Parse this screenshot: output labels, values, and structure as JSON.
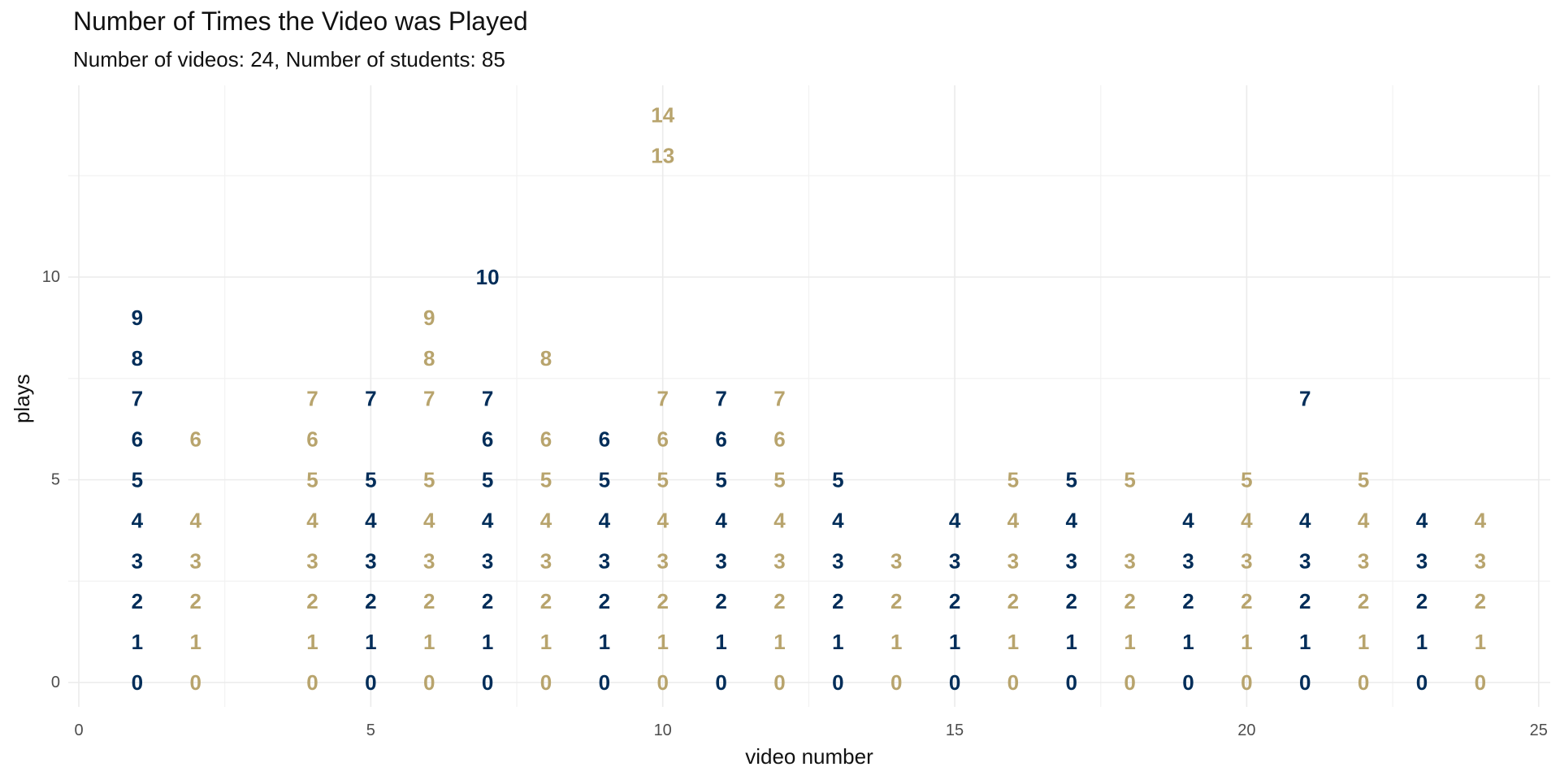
{
  "chart_data": {
    "type": "scatter",
    "title": "Number of Times the Video was Played",
    "subtitle": "Number of videos: 24, Number of students: 85",
    "xlabel": "video number",
    "ylabel": "plays",
    "xlim": [
      0,
      25
    ],
    "ylim": [
      0,
      14
    ],
    "x_ticks": [
      0,
      5,
      10,
      15,
      20,
      25
    ],
    "y_ticks": [
      0,
      5,
      10
    ],
    "grid": true,
    "legend": "none",
    "colors": {
      "odd": "#002D59",
      "even": "#B8A46D"
    },
    "videos": [
      {
        "video": 1,
        "plays": [
          0,
          1,
          2,
          3,
          4,
          5,
          6,
          7,
          8,
          9
        ]
      },
      {
        "video": 2,
        "plays": [
          0,
          1,
          2,
          3,
          4,
          6
        ]
      },
      {
        "video": 4,
        "plays": [
          0,
          1,
          2,
          3,
          4,
          5,
          6,
          7
        ]
      },
      {
        "video": 5,
        "plays": [
          0,
          1,
          2,
          3,
          4,
          5,
          7
        ]
      },
      {
        "video": 6,
        "plays": [
          0,
          1,
          2,
          3,
          4,
          5,
          7,
          8,
          9
        ]
      },
      {
        "video": 7,
        "plays": [
          0,
          1,
          2,
          3,
          4,
          5,
          6,
          7,
          10
        ]
      },
      {
        "video": 8,
        "plays": [
          0,
          1,
          2,
          3,
          4,
          5,
          6,
          8
        ]
      },
      {
        "video": 9,
        "plays": [
          0,
          1,
          2,
          3,
          4,
          5,
          6
        ]
      },
      {
        "video": 10,
        "plays": [
          0,
          1,
          2,
          3,
          4,
          5,
          6,
          7,
          13,
          14
        ]
      },
      {
        "video": 11,
        "plays": [
          0,
          1,
          2,
          3,
          4,
          5,
          6,
          7
        ]
      },
      {
        "video": 12,
        "plays": [
          0,
          1,
          2,
          3,
          4,
          5,
          6,
          7
        ]
      },
      {
        "video": 13,
        "plays": [
          0,
          1,
          2,
          3,
          4,
          5
        ]
      },
      {
        "video": 14,
        "plays": [
          0,
          1,
          2,
          3
        ]
      },
      {
        "video": 15,
        "plays": [
          0,
          1,
          2,
          3,
          4
        ]
      },
      {
        "video": 16,
        "plays": [
          0,
          1,
          2,
          3,
          4,
          5
        ]
      },
      {
        "video": 17,
        "plays": [
          0,
          1,
          2,
          3,
          4,
          5
        ]
      },
      {
        "video": 18,
        "plays": [
          0,
          1,
          2,
          3,
          5
        ]
      },
      {
        "video": 19,
        "plays": [
          0,
          1,
          2,
          3,
          4
        ]
      },
      {
        "video": 20,
        "plays": [
          0,
          1,
          2,
          3,
          4,
          5
        ]
      },
      {
        "video": 21,
        "plays": [
          0,
          1,
          2,
          3,
          4,
          7
        ]
      },
      {
        "video": 22,
        "plays": [
          0,
          1,
          2,
          3,
          4,
          5
        ]
      },
      {
        "video": 23,
        "plays": [
          0,
          1,
          2,
          3,
          4
        ]
      },
      {
        "video": 24,
        "plays": [
          0,
          1,
          2,
          3,
          4
        ]
      }
    ]
  }
}
